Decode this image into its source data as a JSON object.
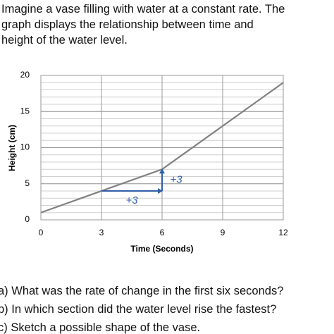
{
  "intro": [
    "Imagine a vase filling with water at a constant rate. The",
    "graph displays the relationship between time and",
    "height of the water level."
  ],
  "chart_data": {
    "type": "line",
    "x_label": "Time (Seconds)",
    "y_label": "Height (cm)",
    "x": [
      0,
      6,
      12
    ],
    "values": [
      1,
      7,
      19
    ],
    "color": "#808080",
    "xlim": [
      0,
      12
    ],
    "ylim": [
      0,
      20
    ],
    "xticks": [
      0,
      3,
      6,
      9,
      12
    ],
    "yticks": [
      0,
      5,
      10,
      15,
      20
    ],
    "grid": true,
    "y_minor_grid": 1,
    "annotations": [
      {
        "text": "+3",
        "from": [
          3,
          4
        ],
        "to": [
          6,
          4
        ],
        "color": "#2f5ea8"
      },
      {
        "text": "+3",
        "from": [
          6,
          4
        ],
        "to": [
          6,
          7
        ],
        "color": "#2f5ea8"
      }
    ]
  },
  "questions": [
    "a)  What was the rate of change in the first six seconds?",
    "b)  In which section did the water level rise the fastest?",
    "c)  Sketch a possible shape of the vase."
  ]
}
